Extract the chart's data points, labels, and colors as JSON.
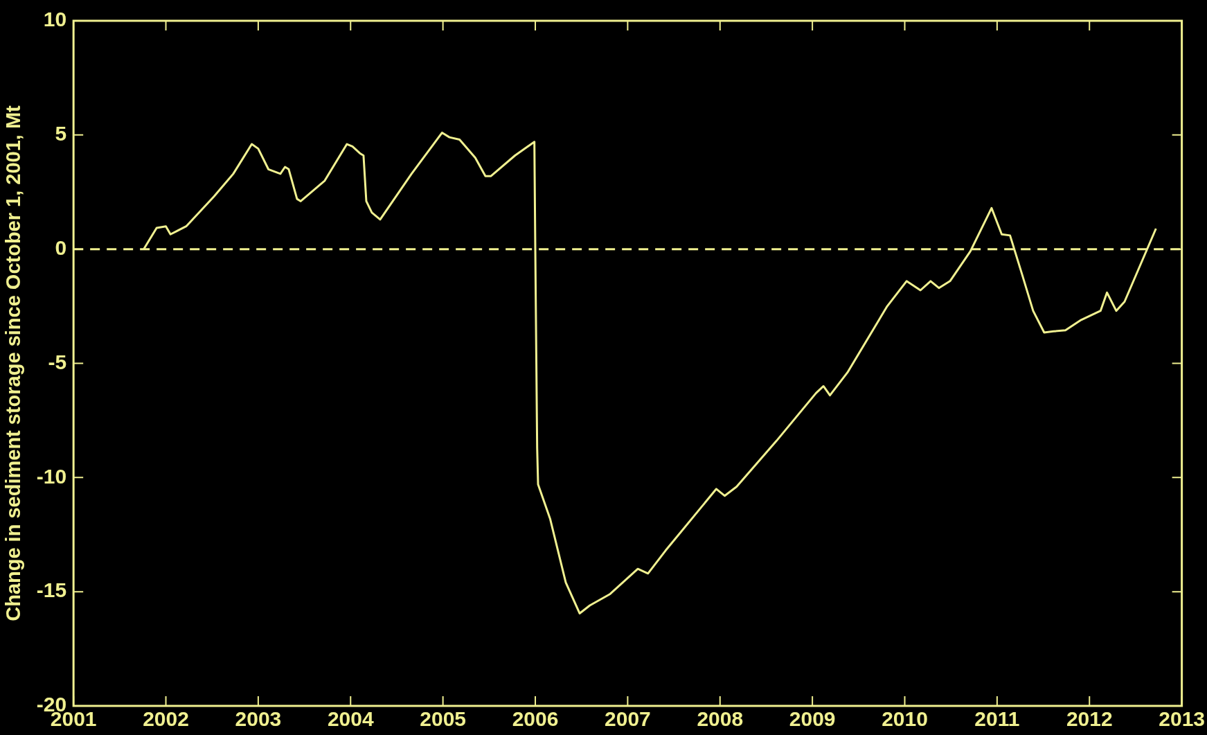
{
  "chart_data": {
    "type": "line",
    "ylabel": "Change in sediment storage since October 1, 2001, Mt",
    "x": [
      2001.76,
      2001.9,
      2002.0,
      2002.05,
      2002.22,
      2002.52,
      2002.73,
      2002.93,
      2003.0,
      2003.11,
      2003.24,
      2003.29,
      2003.33,
      2003.42,
      2003.46,
      2003.72,
      2003.96,
      2004.02,
      2004.1,
      2004.14,
      2004.17,
      2004.23,
      2004.32,
      2004.66,
      2004.99,
      2005.07,
      2005.18,
      2005.35,
      2005.46,
      2005.52,
      2005.78,
      2005.99,
      2006.0,
      2006.02,
      2006.03,
      2006.16,
      2006.33,
      2006.48,
      2006.59,
      2006.81,
      2007.11,
      2007.22,
      2007.41,
      2007.96,
      2008.05,
      2008.18,
      2008.61,
      2009.04,
      2009.12,
      2009.19,
      2009.38,
      2009.81,
      2010.02,
      2010.17,
      2010.28,
      2010.37,
      2010.49,
      2010.71,
      2010.94,
      2011.05,
      2011.14,
      2011.27,
      2011.39,
      2011.51,
      2011.61,
      2011.74,
      2011.91,
      2012.12,
      2012.19,
      2012.29,
      2012.38,
      2012.72
    ],
    "series": [
      {
        "color": "#f0f090",
        "values": [
          0.0,
          0.93,
          1.0,
          0.65,
          1.0,
          2.3,
          3.3,
          4.6,
          4.4,
          3.5,
          3.3,
          3.6,
          3.5,
          2.2,
          2.1,
          3.0,
          4.6,
          4.5,
          4.2,
          4.1,
          2.1,
          1.6,
          1.3,
          3.3,
          5.1,
          4.9,
          4.8,
          4.0,
          3.2,
          3.2,
          4.1,
          4.7,
          -0.1,
          -8.7,
          -10.3,
          -11.8,
          -14.6,
          -15.95,
          -15.6,
          -15.1,
          -14.0,
          -14.2,
          -13.2,
          -10.5,
          -10.8,
          -10.4,
          -8.4,
          -6.3,
          -6.0,
          -6.4,
          -5.4,
          -2.5,
          -1.4,
          -1.8,
          -1.4,
          -1.7,
          -1.4,
          -0.1,
          1.8,
          0.65,
          0.6,
          -1.1,
          -2.7,
          -3.65,
          -3.6,
          -3.55,
          -3.1,
          -2.7,
          -1.9,
          -2.7,
          -2.3,
          0.9
        ]
      }
    ],
    "xlim": [
      2001,
      2013
    ],
    "xticks": [
      2001,
      2002,
      2003,
      2004,
      2005,
      2006,
      2007,
      2008,
      2009,
      2010,
      2011,
      2012,
      2013
    ],
    "ylim": [
      -20,
      10
    ],
    "yticks": [
      -20,
      -15,
      -10,
      -5,
      0,
      5,
      10
    ],
    "ref_lines": [
      {
        "axis": "y",
        "value": 0,
        "line_style": "dashed",
        "color": "#f0f090"
      }
    ],
    "grid": false,
    "legend": false,
    "marker": "none",
    "line_style": "solid"
  }
}
